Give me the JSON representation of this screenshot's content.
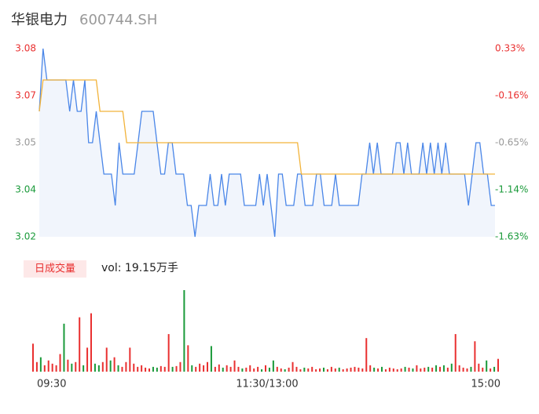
{
  "chart_data": {
    "type": "line",
    "title": "华银电力",
    "subtitle": "600744.SH",
    "ylim": [
      3.02,
      3.08
    ],
    "yticks": [
      {
        "value": 3.08,
        "label": "3.08"
      },
      {
        "value": 3.065,
        "label": "3.07"
      },
      {
        "value": 3.05,
        "label": "3.05"
      },
      {
        "value": 3.035,
        "label": "3.04"
      },
      {
        "value": 3.02,
        "label": "3.02"
      }
    ],
    "y2lim": [
      -1.63,
      0.33
    ],
    "y2ticks": [
      {
        "value": 0.33,
        "label": "0.33%"
      },
      {
        "value": -0.16,
        "label": "-0.16%"
      },
      {
        "value": -0.65,
        "label": "-0.65%"
      },
      {
        "value": -1.14,
        "label": "-1.14%"
      },
      {
        "value": -1.63,
        "label": "-1.63%"
      }
    ],
    "tick_colors": [
      "#e93030",
      "#e93030",
      "#999999",
      "#1a9a3a",
      "#1a9a3a"
    ],
    "xlim": [
      0,
      120
    ],
    "xticks": [
      {
        "value": 0,
        "label": "09:30"
      },
      {
        "value": 60,
        "label": "11:30/13:00"
      },
      {
        "value": 120,
        "label": "15:00"
      }
    ],
    "price": {
      "color": "#4a86e8",
      "values": [
        3.06,
        3.08,
        3.07,
        3.07,
        3.07,
        3.07,
        3.07,
        3.07,
        3.06,
        3.07,
        3.06,
        3.06,
        3.07,
        3.05,
        3.05,
        3.06,
        3.05,
        3.04,
        3.04,
        3.04,
        3.03,
        3.05,
        3.04,
        3.04,
        3.04,
        3.04,
        3.05,
        3.06,
        3.06,
        3.06,
        3.06,
        3.05,
        3.04,
        3.04,
        3.05,
        3.05,
        3.04,
        3.04,
        3.04,
        3.03,
        3.03,
        3.02,
        3.03,
        3.03,
        3.03,
        3.04,
        3.03,
        3.03,
        3.04,
        3.03,
        3.04,
        3.04,
        3.04,
        3.04,
        3.03,
        3.03,
        3.03,
        3.03,
        3.04,
        3.03,
        3.04,
        3.03,
        3.02,
        3.04,
        3.04,
        3.03,
        3.03,
        3.03,
        3.04,
        3.04,
        3.03,
        3.03,
        3.03,
        3.04,
        3.04,
        3.03,
        3.03,
        3.03,
        3.04,
        3.03,
        3.03,
        3.03,
        3.03,
        3.03,
        3.03,
        3.04,
        3.04,
        3.05,
        3.04,
        3.05,
        3.04,
        3.04,
        3.04,
        3.04,
        3.05,
        3.05,
        3.04,
        3.05,
        3.04,
        3.04,
        3.04,
        3.05,
        3.04,
        3.05,
        3.04,
        3.05,
        3.04,
        3.05,
        3.04,
        3.04,
        3.04,
        3.04,
        3.04,
        3.03,
        3.04,
        3.05,
        3.05,
        3.04,
        3.04,
        3.03,
        3.03
      ]
    },
    "average": {
      "color": "#f2b33a",
      "values": [
        3.06,
        3.07,
        3.07,
        3.07,
        3.07,
        3.07,
        3.07,
        3.07,
        3.07,
        3.07,
        3.07,
        3.07,
        3.07,
        3.07,
        3.07,
        3.07,
        3.06,
        3.06,
        3.06,
        3.06,
        3.06,
        3.06,
        3.06,
        3.05,
        3.05,
        3.05,
        3.05,
        3.05,
        3.05,
        3.05,
        3.05,
        3.05,
        3.05,
        3.05,
        3.05,
        3.05,
        3.05,
        3.05,
        3.05,
        3.05,
        3.05,
        3.05,
        3.05,
        3.05,
        3.05,
        3.05,
        3.05,
        3.05,
        3.05,
        3.05,
        3.05,
        3.05,
        3.05,
        3.05,
        3.05,
        3.05,
        3.05,
        3.05,
        3.05,
        3.05,
        3.05,
        3.05,
        3.05,
        3.05,
        3.05,
        3.05,
        3.05,
        3.05,
        3.05,
        3.04,
        3.04,
        3.04,
        3.04,
        3.04,
        3.04,
        3.04,
        3.04,
        3.04,
        3.04,
        3.04,
        3.04,
        3.04,
        3.04,
        3.04,
        3.04,
        3.04,
        3.04,
        3.04,
        3.04,
        3.04,
        3.04,
        3.04,
        3.04,
        3.04,
        3.04,
        3.04,
        3.04,
        3.04,
        3.04,
        3.04,
        3.04,
        3.04,
        3.04,
        3.04,
        3.04,
        3.04,
        3.04,
        3.04,
        3.04,
        3.04,
        3.04,
        3.04,
        3.04,
        3.04,
        3.04,
        3.04,
        3.04,
        3.04,
        3.04,
        3.04,
        3.04
      ]
    },
    "volume": {
      "name": "日成交量",
      "up_color": "#e93030",
      "down_color": "#1a9a3a",
      "label": "vol: 19.15万手",
      "values": [
        3500,
        1200,
        1800,
        800,
        1400,
        1000,
        800,
        2200,
        6000,
        1500,
        1000,
        1200,
        6800,
        800,
        3000,
        7300,
        1000,
        800,
        1200,
        3000,
        1400,
        1800,
        800,
        600,
        1200,
        3000,
        1000,
        600,
        800,
        500,
        400,
        600,
        500,
        700,
        600,
        4700,
        600,
        700,
        1200,
        10200,
        3300,
        800,
        600,
        1000,
        800,
        1200,
        3200,
        600,
        900,
        500,
        800,
        600,
        1400,
        600,
        400,
        500,
        800,
        400,
        600,
        300,
        800,
        500,
        1400,
        600,
        400,
        300,
        500,
        1200,
        600,
        300,
        500,
        400,
        600,
        300,
        400,
        500,
        300,
        600,
        400,
        500,
        300,
        400,
        500,
        600,
        500,
        400,
        4200,
        800,
        500,
        400,
        600,
        300,
        500,
        400,
        300,
        400,
        600,
        500,
        400,
        800,
        400,
        500,
        600,
        500,
        800,
        600,
        800,
        500,
        1000,
        4700,
        800,
        500,
        400,
        600,
        3800,
        1000,
        500,
        1400,
        400,
        600,
        1600
      ]
    }
  }
}
